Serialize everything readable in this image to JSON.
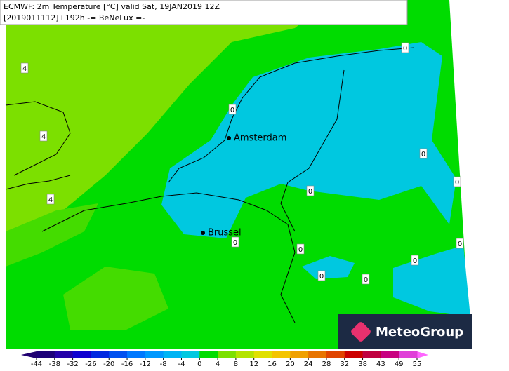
{
  "header": {
    "line1": "ECMWF: 2m Temperature [°C] valid Sat, 19JAN2019 12Z",
    "line2": "[2019011112]+192h -= BeNeLux =-"
  },
  "cities": [
    "Amsterdam",
    "Brussel"
  ],
  "contour_labels": [
    4,
    4,
    4,
    0,
    0,
    0,
    0,
    0,
    0,
    0,
    0,
    0,
    0,
    0
  ],
  "colorbar": {
    "ticks": [
      -44,
      -38,
      -32,
      -26,
      -20,
      -16,
      -12,
      -8,
      -4,
      0,
      4,
      8,
      12,
      16,
      20,
      24,
      28,
      32,
      38,
      43,
      49,
      55
    ],
    "colors": [
      "#1c0078",
      "#2400a8",
      "#1000d0",
      "#0028e0",
      "#0050f0",
      "#0078ff",
      "#0098ff",
      "#00b4f4",
      "#00c8e0",
      "#00dc00",
      "#7ce000",
      "#b4e400",
      "#e0e000",
      "#f4c400",
      "#f0a000",
      "#e87400",
      "#e04400",
      "#cc0000",
      "#c00040",
      "#c80080",
      "#e040d8"
    ],
    "low_color": "#200070",
    "high_color": "#ff66ff"
  },
  "logo": "MeteoGroup"
}
